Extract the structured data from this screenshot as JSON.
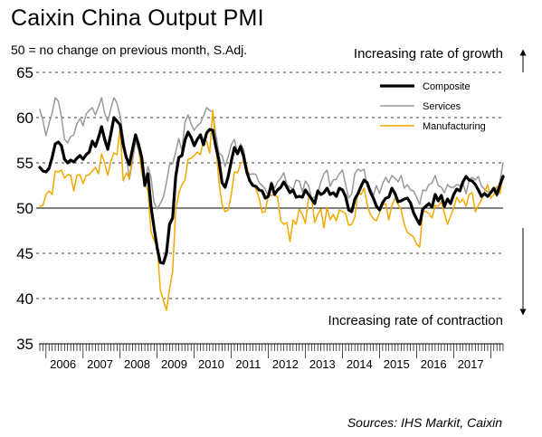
{
  "title": "Caixin China Output PMI",
  "subtitle": "50 = no change on previous month, S.Adj.",
  "annotations": {
    "growth": "Increasing rate of growth",
    "contraction": "Increasing rate of contraction"
  },
  "source": "Sources: IHS Markit, Caixin",
  "colors": {
    "composite": "#000000",
    "services": "#999999",
    "manufacturing": "#f2a900",
    "axis": "#000000"
  },
  "chart_data": {
    "type": "line",
    "xlabel": "",
    "ylabel": "",
    "ylim": [
      35,
      65
    ],
    "yticks": [
      35,
      40,
      45,
      50,
      55,
      60,
      65
    ],
    "reference_line": 50,
    "x_start": "2005-11",
    "x_end": "2017-10",
    "year_labels": [
      "2006",
      "2007",
      "2008",
      "2009",
      "2010",
      "2011",
      "2012",
      "2013",
      "2014",
      "2015",
      "2016",
      "2017"
    ],
    "legend_position": "top-right",
    "series": [
      {
        "name": "Composite",
        "key": "composite",
        "values": [
          54.5,
          54.1,
          54.0,
          54.4,
          55.6,
          57.1,
          57.3,
          56.9,
          55.4,
          55.0,
          55.3,
          55.1,
          55.5,
          55.8,
          55.4,
          55.9,
          56.2,
          57.4,
          56.8,
          57.8,
          59.0,
          57.6,
          56.5,
          58.2,
          60.0,
          59.6,
          59.2,
          57.0,
          55.6,
          54.8,
          56.5,
          58.1,
          57.0,
          55.6,
          52.5,
          53.8,
          50.2,
          47.8,
          45.6,
          44.0,
          43.9,
          45.0,
          48.2,
          48.9,
          53.5,
          55.6,
          55.8,
          57.5,
          58.4,
          57.8,
          56.9,
          57.6,
          58.1,
          57.0,
          58.3,
          58.7,
          58.6,
          56.8,
          55.3,
          52.8,
          52.3,
          53.5,
          55.2,
          56.7,
          56.0,
          56.8,
          55.7,
          54.0,
          53.0,
          52.5,
          52.4,
          52.0,
          51.9,
          51.1,
          51.3,
          52.7,
          51.5,
          52.0,
          52.3,
          52.9,
          52.3,
          51.7,
          52.0,
          51.2,
          51.3,
          51.2,
          52.0,
          51.5,
          51.0,
          50.5,
          51.9,
          51.5,
          51.7,
          52.2,
          51.5,
          51.7,
          51.3,
          52.2,
          52.0,
          51.3,
          49.8,
          49.6,
          51.0,
          51.6,
          52.4,
          53.1,
          52.8,
          51.8,
          51.1,
          50.2,
          49.8,
          50.6,
          51.1,
          51.2,
          52.2,
          51.6,
          50.7,
          50.8,
          51.0,
          51.1,
          50.6,
          49.5,
          48.8,
          48.2,
          49.9,
          50.2,
          50.5,
          50.1,
          51.5,
          50.8,
          51.4,
          50.2,
          51.0,
          50.5,
          51.5,
          52.1,
          51.9,
          52.9,
          53.5,
          53.1,
          53.0,
          52.6,
          52.0,
          51.3,
          51.6,
          51.3,
          51.7,
          52.2,
          51.5,
          52.6,
          53.5
        ]
      },
      {
        "name": "Services",
        "key": "services",
        "values": [
          60.9,
          59.7,
          58.0,
          59.4,
          60.5,
          62.2,
          61.8,
          60.1,
          57.6,
          57.2,
          57.9,
          58.1,
          59.3,
          59.9,
          59.1,
          60.4,
          60.8,
          61.1,
          60.3,
          61.2,
          62.2,
          60.5,
          59.6,
          61.0,
          62.2,
          61.6,
          60.2,
          57.9,
          55.7,
          53.2,
          55.2,
          57.4,
          56.4,
          54.1,
          52.8,
          54.6,
          53.4,
          50.6,
          49.9,
          50.5,
          51.2,
          52.8,
          54.8,
          54.9,
          56.2,
          57.7,
          56.3,
          59.5,
          60.3,
          59.3,
          58.6,
          59.1,
          59.4,
          60.2,
          61.1,
          60.8,
          60.6,
          58.1,
          56.1,
          55.8,
          54.6,
          55.7,
          57.0,
          57.6,
          56.1,
          57.1,
          56.5,
          54.3,
          53.7,
          53.8,
          53.7,
          52.8,
          52.5,
          52.1,
          51.3,
          52.9,
          52.2,
          52.9,
          53.3,
          53.9,
          52.6,
          52.3,
          52.1,
          53.1,
          53.0,
          51.8,
          53.0,
          52.5,
          51.1,
          51.2,
          51.7,
          52.9,
          53.8,
          54.2,
          52.4,
          53.1,
          53.2,
          53.8,
          54.2,
          52.6,
          51.1,
          51.6,
          53.8,
          54.3,
          54.1,
          54.3,
          52.4,
          52.2,
          51.4,
          52.5,
          51.6,
          52.7,
          53.4,
          52.8,
          53.6,
          53.3,
          52.9,
          53.6,
          52.2,
          52.6,
          52.0,
          51.9,
          51.2,
          50.4,
          52.0,
          51.9,
          52.6,
          52.8,
          53.6,
          52.5,
          52.3,
          51.7,
          52.6,
          52.3,
          52.3,
          52.6,
          52.5,
          52.7,
          51.6,
          53.1,
          53.4,
          53.1,
          53.5,
          52.4,
          52.1,
          51.8,
          51.8,
          52.0,
          51.3,
          53.0,
          55.0
        ]
      },
      {
        "name": "Manufacturing",
        "key": "manufacturing",
        "values": [
          50.2,
          50.3,
          51.5,
          51.9,
          51.5,
          54.1,
          54.0,
          54.2,
          53.3,
          53.7,
          53.6,
          51.9,
          53.6,
          53.7,
          52.7,
          53.6,
          53.7,
          54.1,
          54.5,
          53.8,
          56.0,
          55.0,
          53.6,
          55.2,
          56.1,
          55.9,
          58.9,
          53.0,
          53.9,
          53.3,
          56.0,
          57.6,
          56.8,
          53.9,
          52.5,
          52.0,
          47.4,
          46.4,
          46.0,
          41.0,
          39.8,
          38.7,
          41.0,
          43.0,
          49.8,
          51.6,
          52.6,
          53.1,
          55.4,
          55.5,
          55.8,
          56.2,
          55.9,
          57.5,
          57.4,
          56.1,
          60.8,
          56.9,
          52.9,
          50.4,
          49.6,
          49.8,
          51.5,
          54.0,
          53.9,
          54.9,
          55.2,
          54.7,
          53.0,
          52.7,
          52.1,
          51.1,
          49.5,
          49.6,
          51.5,
          51.4,
          51.5,
          51.2,
          48.6,
          48.2,
          48.4,
          46.3,
          48.7,
          48.2,
          49.9,
          49.3,
          48.3,
          51.2,
          51.1,
          48.4,
          49.3,
          49.9,
          47.8,
          50.1,
          48.7,
          49.3,
          48.6,
          49.8,
          49.6,
          49.4,
          48.1,
          48.2,
          49.0,
          51.8,
          51.5,
          52.2,
          50.4,
          49.3,
          48.8,
          48.6,
          49.5,
          50.3,
          50.5,
          48.7,
          50.3,
          51.1,
          50.4,
          49.8,
          48.2,
          47.3,
          47.1,
          46.8,
          46.0,
          45.7,
          49.7,
          49.6,
          49.4,
          48.9,
          50.3,
          50.2,
          50.7,
          49.4,
          48.2,
          49.1,
          50.0,
          51.2,
          50.6,
          51.0,
          50.2,
          51.5,
          51.7,
          49.6,
          50.3,
          50.9,
          51.8,
          52.6,
          51.1,
          51.5,
          52.4,
          51.6,
          53.7
        ]
      }
    ]
  }
}
